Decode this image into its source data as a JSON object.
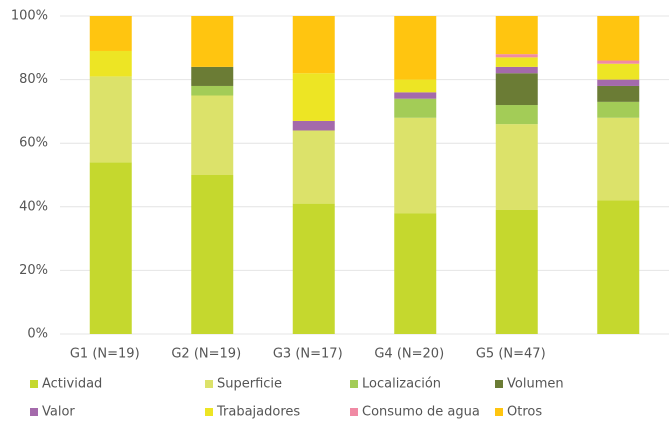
{
  "chart_data": {
    "type": "stacked_bar",
    "categories": [
      "G1 (N=19)",
      "G2 (N=19)",
      "G3 (N=17)",
      "G4 (N=20)",
      "G5 (N=47)",
      null
    ],
    "series": [
      {
        "name": "Actividad",
        "color": "#c5d82e",
        "values": [
          54,
          50,
          41,
          38,
          39,
          42
        ]
      },
      {
        "name": "Superficie",
        "color": "#dce26a",
        "values": [
          27,
          25,
          23,
          30,
          27,
          26
        ]
      },
      {
        "name": "Localización",
        "color": "#a3cc57",
        "values": [
          0,
          3,
          0,
          6,
          6,
          5
        ]
      },
      {
        "name": "Volumen",
        "color": "#6b7c35",
        "values": [
          0,
          6,
          0,
          0,
          10,
          5
        ]
      },
      {
        "name": "Valor",
        "color": "#a46aab",
        "values": [
          0,
          0,
          3,
          2,
          2,
          2
        ]
      },
      {
        "name": "Trabajadores",
        "color": "#ede524",
        "values": [
          8,
          0,
          15,
          4,
          3,
          5
        ]
      },
      {
        "name": "Consumo de agua",
        "color": "#f08aa4",
        "values": [
          0,
          0,
          0,
          0,
          1,
          1
        ]
      },
      {
        "name": "Otros",
        "color": "#ffc510",
        "values": [
          11,
          16,
          18,
          20,
          12,
          14
        ]
      }
    ],
    "ylim": [
      0,
      100
    ],
    "yticks": [
      {
        "value": 0,
        "label": "0%"
      },
      {
        "value": 20,
        "label": "20%"
      },
      {
        "value": 40,
        "label": "40%"
      },
      {
        "value": 60,
        "label": "60%"
      },
      {
        "value": 80,
        "label": "80%"
      },
      {
        "value": 100,
        "label": "100%"
      }
    ],
    "grid": true,
    "legend": "bottom"
  }
}
